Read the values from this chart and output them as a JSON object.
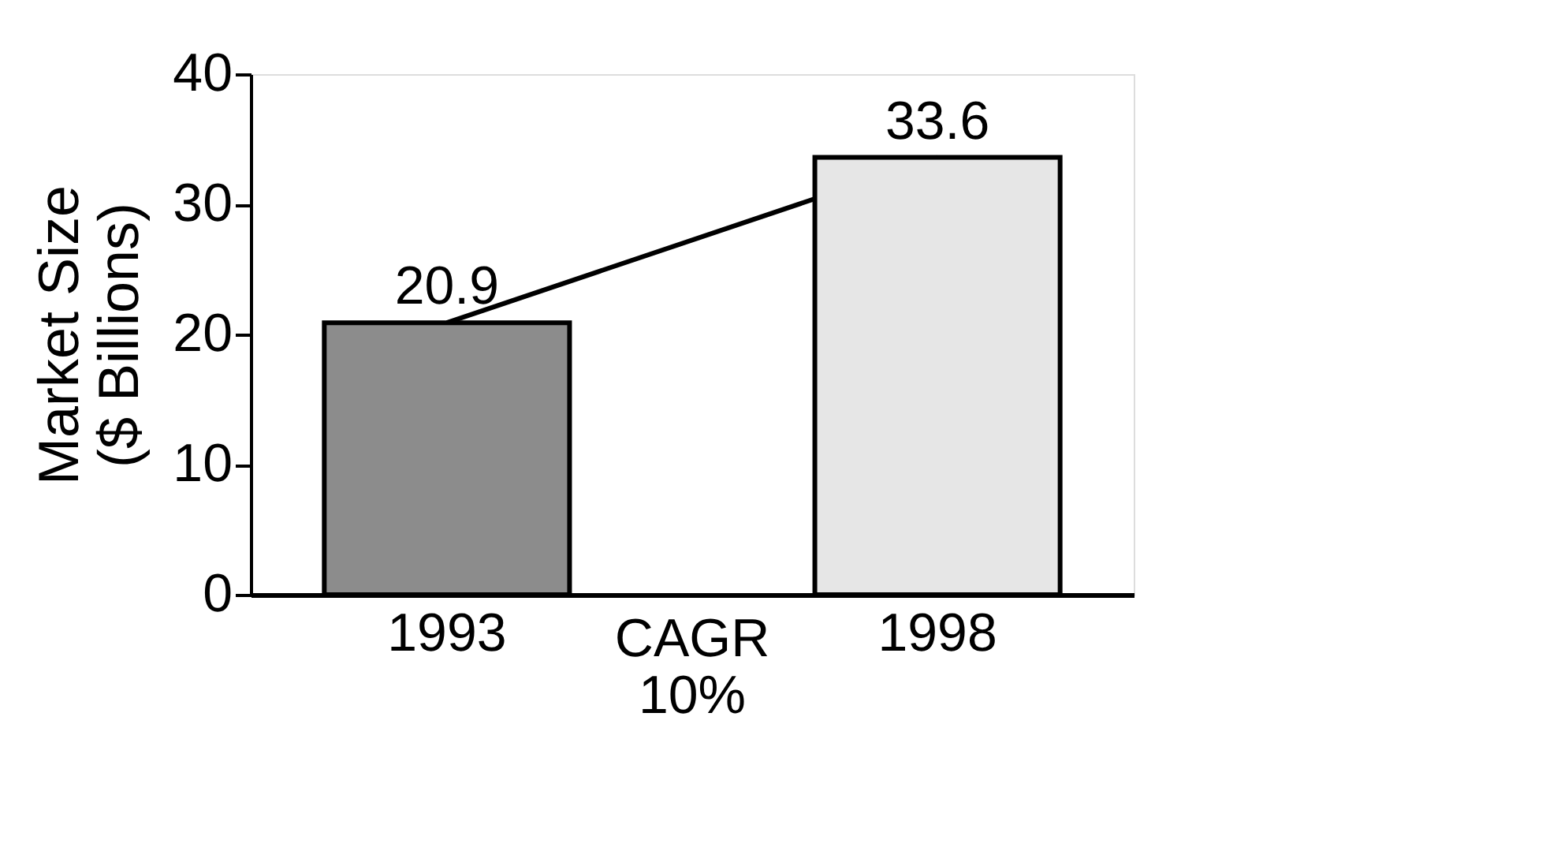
{
  "chart_data": {
    "type": "bar",
    "ylabel": "Market Size ($ Billions)",
    "categories": [
      "1993",
      "1998"
    ],
    "values": [
      20.9,
      33.6
    ],
    "colors": [
      "#8c8c8c",
      "#e6e6e6"
    ],
    "ylim": [
      0,
      40
    ],
    "yticks": [
      0,
      10,
      20,
      30,
      40
    ],
    "grid": false,
    "data_labels": true,
    "annotations": [
      "CAGR\n10%"
    ]
  }
}
